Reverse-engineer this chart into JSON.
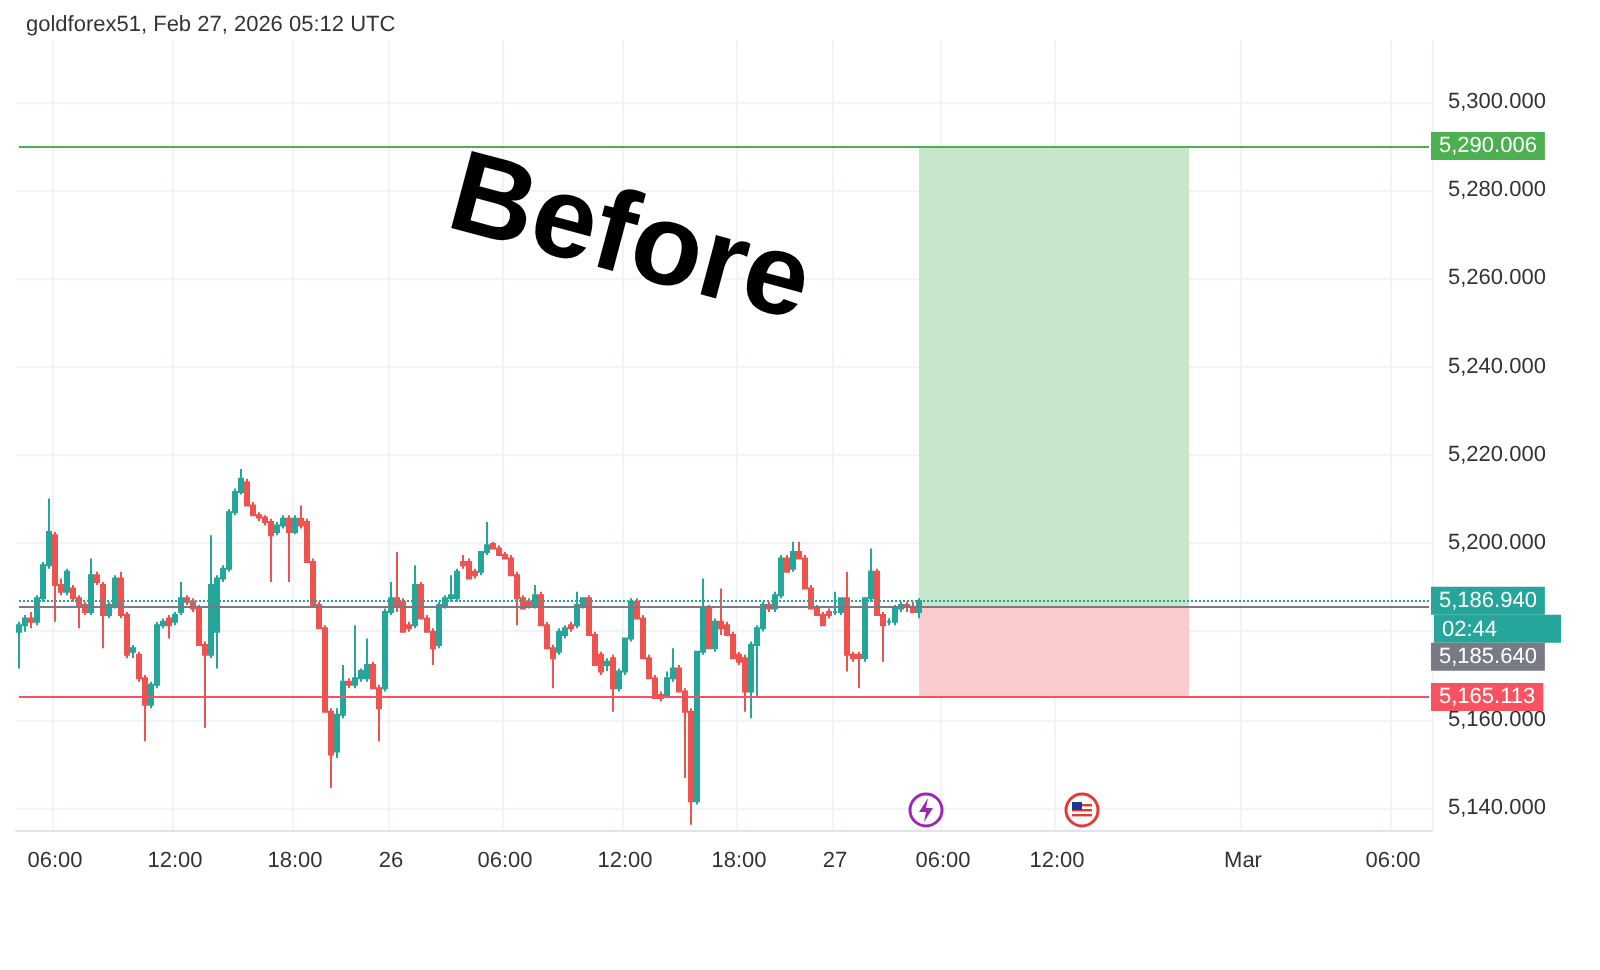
{
  "chart_data": {
    "type": "candlestick",
    "title": "goldforex51, Feb 27, 2026 05:12 UTC",
    "annotations": [
      "Before",
      "02:44"
    ],
    "categories": [
      null,
      null,
      null,
      null,
      null,
      null,
      "06:00",
      null,
      null,
      null,
      null,
      null,
      null,
      null,
      null,
      null,
      null,
      null,
      null,
      null,
      null,
      null,
      null,
      null,
      null,
      null,
      "12:00",
      null,
      null,
      null,
      null,
      null,
      null,
      null,
      null,
      null,
      null,
      null,
      null,
      null,
      null,
      null,
      null,
      null,
      null,
      null,
      "18:00",
      null,
      null,
      null,
      null,
      null,
      null,
      null,
      null,
      null,
      null,
      null,
      null,
      null,
      null,
      null,
      "26",
      null,
      null,
      null,
      null,
      null,
      null,
      null,
      null,
      null,
      null,
      null,
      null,
      null,
      null,
      null,
      null,
      null,
      null,
      "06:00",
      null,
      null,
      null,
      null,
      null,
      null,
      null,
      null,
      null,
      null,
      null,
      null,
      null,
      null,
      null,
      null,
      null,
      null,
      null,
      "12:00",
      null,
      null,
      null,
      null,
      null,
      null,
      null,
      null,
      null,
      null,
      null,
      null,
      null,
      null,
      null,
      null,
      null,
      null,
      "18:00",
      null,
      null,
      null,
      null,
      null,
      null,
      null,
      null,
      null,
      null,
      null,
      null,
      null,
      null,
      null,
      "27",
      null,
      null,
      null,
      null,
      null,
      null,
      null,
      null,
      null,
      null,
      null,
      null,
      null,
      null,
      null,
      null,
      null,
      "06:00",
      null,
      null,
      null,
      null,
      null,
      null,
      null,
      null,
      null,
      null,
      null,
      null,
      null,
      null,
      null,
      null,
      null,
      null,
      "12:00",
      null,
      null,
      null,
      null,
      null,
      null,
      null,
      null,
      null,
      null,
      null,
      null,
      null,
      null,
      null,
      null,
      null,
      null,
      null,
      null,
      null,
      null,
      null,
      null,
      null,
      null,
      null,
      null,
      null,
      null,
      "Mar",
      null,
      null,
      null,
      null,
      null,
      null,
      null,
      null,
      null,
      null,
      null,
      null,
      null,
      null,
      null,
      null,
      null,
      null,
      null,
      null,
      null,
      null,
      null,
      null,
      "06:00",
      null,
      null,
      null,
      null,
      null,
      null
    ],
    "ohlc": [
      [
        5179.9,
        5182.2,
        5171.6,
        5181.4
      ],
      [
        5181.4,
        5183.7,
        5179.9,
        5182.9
      ],
      [
        5182.9,
        5184.4,
        5180.7,
        5182.2
      ],
      [
        5182.2,
        5188.2,
        5181.4,
        5187.5
      ],
      [
        5187.5,
        5195.7,
        5186.7,
        5195.0
      ],
      [
        5195.0,
        5210.1,
        5194.2,
        5202.5
      ],
      [
        5201.8,
        5202.5,
        5182.2,
        5190.5
      ],
      [
        5190.5,
        5192.0,
        5188.2,
        5189.0
      ],
      [
        5189.0,
        5194.2,
        5188.2,
        5193.5
      ],
      [
        5189.7,
        5190.5,
        5186.7,
        5187.5
      ],
      [
        5187.5,
        5188.2,
        5180.7,
        5186.0
      ],
      [
        5186.0,
        5186.7,
        5183.7,
        5184.4
      ],
      [
        5184.4,
        5196.5,
        5183.7,
        5192.7
      ],
      [
        5192.7,
        5193.5,
        5190.5,
        5191.2
      ],
      [
        5190.5,
        5191.2,
        5176.2,
        5183.7
      ],
      [
        5183.7,
        5186.7,
        5183.0,
        5186.0
      ],
      [
        5186.0,
        5192.7,
        5185.2,
        5192.0
      ],
      [
        5192.0,
        5193.5,
        5183.0,
        5183.7
      ],
      [
        5183.7,
        5184.4,
        5173.9,
        5174.7
      ],
      [
        5175.4,
        5176.9,
        5174.0,
        5176.2
      ],
      [
        5174.7,
        5175.4,
        5168.6,
        5169.4
      ],
      [
        5169.4,
        5170.1,
        5155.1,
        5163.4
      ],
      [
        5163.4,
        5168.6,
        5162.6,
        5167.9
      ],
      [
        5167.9,
        5182.2,
        5167.1,
        5181.4
      ],
      [
        5181.4,
        5182.9,
        5180.7,
        5182.2
      ],
      [
        5182.9,
        5183.7,
        5178.4,
        5181.4
      ],
      [
        5182.2,
        5184.4,
        5181.4,
        5183.7
      ],
      [
        5184.4,
        5191.2,
        5183.7,
        5187.5
      ],
      [
        5187.5,
        5188.2,
        5186.0,
        5186.7
      ],
      [
        5186.7,
        5187.5,
        5184.4,
        5185.2
      ],
      [
        5185.2,
        5186.0,
        5176.9,
        5176.9
      ],
      [
        5176.9,
        5177.7,
        5158.1,
        5174.7
      ],
      [
        5174.7,
        5201.8,
        5174.0,
        5190.5
      ],
      [
        5179.9,
        5192.7,
        5171.6,
        5192.0
      ],
      [
        5192.0,
        5195.0,
        5191.2,
        5194.2
      ],
      [
        5194.2,
        5207.7,
        5193.5,
        5207.0
      ],
      [
        5207.0,
        5212.4,
        5206.3,
        5211.6
      ],
      [
        5211.6,
        5216.8,
        5211.0,
        5214.6
      ],
      [
        5213.8,
        5214.6,
        5208.5,
        5208.5
      ],
      [
        5208.5,
        5209.3,
        5206.3,
        5206.3
      ],
      [
        5206.3,
        5207.0,
        5205.0,
        5205.8
      ],
      [
        5205.8,
        5206.3,
        5204.0,
        5204.8
      ],
      [
        5204.8,
        5205.5,
        5191.2,
        5201.8
      ],
      [
        5202.5,
        5204.8,
        5201.8,
        5204.0
      ],
      [
        5204.0,
        5206.3,
        5203.3,
        5205.5
      ],
      [
        5205.5,
        5206.3,
        5191.2,
        5202.5
      ],
      [
        5202.5,
        5206.3,
        5202.0,
        5205.5
      ],
      [
        5205.5,
        5208.5,
        5203.3,
        5204.0
      ],
      [
        5204.8,
        5205.5,
        5195.7,
        5195.7
      ],
      [
        5195.7,
        5196.5,
        5186.0,
        5186.0
      ],
      [
        5186.0,
        5186.7,
        5180.7,
        5180.7
      ],
      [
        5180.7,
        5181.4,
        5161.8,
        5161.8
      ],
      [
        5161.8,
        5162.6,
        5144.5,
        5152.1
      ],
      [
        5152.8,
        5162.6,
        5151.3,
        5161.1
      ],
      [
        5161.1,
        5172.4,
        5160.3,
        5168.6
      ],
      [
        5168.6,
        5169.4,
        5167.1,
        5167.9
      ],
      [
        5167.9,
        5181.4,
        5167.1,
        5169.4
      ],
      [
        5169.4,
        5171.6,
        5168.6,
        5171.0
      ],
      [
        5169.4,
        5178.4,
        5168.6,
        5172.4
      ],
      [
        5172.4,
        5173.1,
        5167.1,
        5167.1
      ],
      [
        5167.1,
        5167.9,
        5155.1,
        5162.6
      ],
      [
        5167.1,
        5185.2,
        5166.4,
        5184.4
      ],
      [
        5184.4,
        5191.2,
        5183.7,
        5187.5
      ],
      [
        5187.5,
        5198.0,
        5184.4,
        5186.0
      ],
      [
        5186.7,
        5187.5,
        5179.9,
        5179.9
      ],
      [
        5181.4,
        5182.2,
        5179.9,
        5180.7
      ],
      [
        5181.4,
        5195.0,
        5180.7,
        5190.5
      ],
      [
        5190.5,
        5191.2,
        5182.9,
        5182.9
      ],
      [
        5182.9,
        5183.7,
        5179.9,
        5179.9
      ],
      [
        5179.9,
        5180.7,
        5172.4,
        5176.2
      ],
      [
        5176.9,
        5186.7,
        5176.2,
        5186.0
      ],
      [
        5186.0,
        5188.2,
        5185.2,
        5187.5
      ],
      [
        5187.5,
        5192.7,
        5186.7,
        5188.2
      ],
      [
        5187.5,
        5194.2,
        5186.7,
        5193.5
      ],
      [
        5195.7,
        5197.3,
        5194.2,
        5195.0
      ],
      [
        5195.7,
        5196.5,
        5192.0,
        5192.0
      ],
      [
        5193.5,
        5194.2,
        5192.0,
        5192.7
      ],
      [
        5193.5,
        5198.0,
        5192.7,
        5198.0
      ],
      [
        5198.0,
        5204.8,
        5197.3,
        5199.5
      ],
      [
        5199.8,
        5200.3,
        5198.8,
        5198.8
      ],
      [
        5198.8,
        5199.5,
        5197.3,
        5197.3
      ],
      [
        5197.3,
        5198.0,
        5196.5,
        5196.5
      ],
      [
        5196.5,
        5197.3,
        5192.7,
        5192.7
      ],
      [
        5192.7,
        5193.5,
        5181.4,
        5187.5
      ],
      [
        5187.5,
        5188.2,
        5185.2,
        5185.2
      ],
      [
        5186.7,
        5187.5,
        5185.2,
        5186.0
      ],
      [
        5186.0,
        5190.5,
        5185.2,
        5188.2
      ],
      [
        5188.2,
        5189.0,
        5181.4,
        5181.4
      ],
      [
        5181.4,
        5182.2,
        5176.2,
        5176.2
      ],
      [
        5176.2,
        5177.0,
        5167.1,
        5173.9
      ],
      [
        5175.4,
        5180.7,
        5174.7,
        5179.9
      ],
      [
        5179.2,
        5181.4,
        5178.4,
        5180.7
      ],
      [
        5181.4,
        5182.2,
        5179.9,
        5180.7
      ],
      [
        5181.4,
        5189.0,
        5180.7,
        5186.0
      ],
      [
        5186.0,
        5187.5,
        5185.2,
        5187.5
      ],
      [
        5187.5,
        5188.2,
        5179.2,
        5179.2
      ],
      [
        5179.2,
        5179.9,
        5172.4,
        5172.4
      ],
      [
        5174.7,
        5175.4,
        5170.1,
        5170.9
      ],
      [
        5172.4,
        5173.9,
        5171.0,
        5173.1
      ],
      [
        5173.9,
        5174.7,
        5161.8,
        5167.1
      ],
      [
        5167.1,
        5171.6,
        5166.4,
        5170.9
      ],
      [
        5170.9,
        5178.4,
        5170.1,
        5178.4
      ],
      [
        5178.4,
        5187.5,
        5177.7,
        5186.7
      ],
      [
        5186.7,
        5187.5,
        5182.9,
        5182.9
      ],
      [
        5182.9,
        5183.7,
        5173.9,
        5173.9
      ],
      [
        5173.9,
        5174.7,
        5169.4,
        5169.4
      ],
      [
        5169.4,
        5170.1,
        5164.9,
        5164.9
      ],
      [
        5165.6,
        5166.4,
        5164.1,
        5164.9
      ],
      [
        5165.6,
        5170.9,
        5164.9,
        5169.4
      ],
      [
        5169.4,
        5176.2,
        5168.6,
        5171.6
      ],
      [
        5171.6,
        5172.4,
        5166.4,
        5166.4
      ],
      [
        5166.4,
        5167.1,
        5146.8,
        5161.8
      ],
      [
        5161.8,
        5162.6,
        5136.2,
        5141.5
      ],
      [
        5141.5,
        5175.4,
        5140.8,
        5175.4
      ],
      [
        5175.4,
        5192.0,
        5174.7,
        5185.2
      ],
      [
        5185.2,
        5186.0,
        5176.2,
        5176.2
      ],
      [
        5176.2,
        5182.9,
        5175.4,
        5182.2
      ],
      [
        5182.2,
        5189.7,
        5179.2,
        5180.7
      ],
      [
        5181.4,
        5182.2,
        5179.2,
        5179.2
      ],
      [
        5179.2,
        5179.9,
        5173.9,
        5173.9
      ],
      [
        5174.7,
        5175.4,
        5172.4,
        5173.1
      ],
      [
        5173.9,
        5174.7,
        5161.8,
        5166.4
      ],
      [
        5166.4,
        5177.7,
        5160.3,
        5176.9
      ],
      [
        5176.9,
        5181.4,
        5165.0,
        5180.7
      ],
      [
        5180.7,
        5186.7,
        5180.0,
        5186.0
      ],
      [
        5186.0,
        5186.7,
        5184.4,
        5185.2
      ],
      [
        5185.2,
        5189.0,
        5184.4,
        5188.2
      ],
      [
        5188.2,
        5197.3,
        5187.5,
        5196.5
      ],
      [
        5196.5,
        5197.3,
        5193.5,
        5193.5
      ],
      [
        5194.2,
        5200.3,
        5193.5,
        5198.0
      ],
      [
        5198.0,
        5200.3,
        5196.5,
        5196.5
      ],
      [
        5196.5,
        5197.3,
        5189.7,
        5189.7
      ],
      [
        5189.7,
        5190.5,
        5185.2,
        5185.2
      ],
      [
        5185.2,
        5186.0,
        5183.7,
        5183.7
      ],
      [
        5183.7,
        5184.4,
        5181.4,
        5181.4
      ],
      [
        5184.4,
        5185.2,
        5182.9,
        5183.7
      ],
      [
        5184.4,
        5189.0,
        5183.7,
        5184.4
      ],
      [
        5184.4,
        5187.5,
        5183.7,
        5187.5
      ],
      [
        5187.5,
        5193.5,
        5170.9,
        5174.7
      ],
      [
        5174.7,
        5175.4,
        5173.1,
        5173.9
      ],
      [
        5174.7,
        5175.4,
        5167.1,
        5174.0
      ],
      [
        5174.0,
        5187.5,
        5173.1,
        5187.5
      ],
      [
        5187.5,
        5198.8,
        5186.7,
        5193.5
      ],
      [
        5193.5,
        5194.2,
        5183.7,
        5183.7
      ],
      [
        5183.7,
        5184.4,
        5173.1,
        5181.4
      ],
      [
        5182.2,
        5183.0,
        5181.4,
        5182.2
      ],
      [
        5182.2,
        5186.0,
        5181.4,
        5185.2
      ],
      [
        5185.2,
        5186.7,
        5184.4,
        5186.0
      ],
      [
        5186.0,
        5186.7,
        5184.4,
        5185.6
      ],
      [
        5185.6,
        5186.7,
        5184.4,
        5184.4
      ],
      [
        5184.4,
        5187.5,
        5183.0,
        5186.9
      ],
      null,
      null,
      null,
      null,
      null,
      null,
      null,
      null,
      null,
      null,
      null,
      null,
      null,
      null,
      null,
      null,
      null,
      null,
      null,
      null,
      null,
      null,
      null,
      null,
      null,
      null,
      null,
      null,
      null,
      null,
      null,
      null,
      null,
      null,
      null,
      null,
      null,
      null,
      null,
      null,
      null,
      null,
      null,
      null,
      null,
      null,
      null,
      null,
      null,
      null,
      null,
      null,
      null,
      null,
      null,
      null,
      null,
      null,
      null,
      null,
      null,
      null,
      null,
      null,
      null,
      null,
      null,
      null,
      null,
      null,
      null,
      null,
      null,
      null,
      null,
      null,
      null,
      null,
      null,
      null,
      null,
      null,
      null,
      null,
      null
    ],
    "ylim": [
      5135,
      5314
    ],
    "yticks": [
      {
        "value": 5140,
        "label": "5,140.000"
      },
      {
        "value": 5160,
        "label": "5,160.000"
      },
      {
        "value": 5180,
        "label": null
      },
      {
        "value": 5200,
        "label": "5,200.000"
      },
      {
        "value": 5220,
        "label": "5,220.000"
      },
      {
        "value": 5240,
        "label": "5,240.000"
      },
      {
        "value": 5260,
        "label": "5,260.000"
      },
      {
        "value": 5280,
        "label": "5,280.000"
      },
      {
        "value": 5300,
        "label": "5,300.000"
      }
    ],
    "bands": [
      {
        "axis": "y",
        "from": 5185.64,
        "to": 5290.006,
        "color": "#c8e6c9"
      },
      {
        "axis": "y",
        "from": 5165.113,
        "to": 5185.64,
        "color": "#fccbcd"
      }
    ],
    "ref_lines": [
      {
        "axis": "y",
        "value": 5290.006,
        "label": "5,290.006",
        "color": "#4caf50"
      },
      {
        "axis": "y",
        "value": 5186.94,
        "label": "5,186.940",
        "color": "#26a69a",
        "line_style": "dotted"
      },
      {
        "axis": "y",
        "value": 5185.64,
        "label": "5,185.640",
        "color": "#787b86"
      },
      {
        "axis": "y",
        "value": 5165.113,
        "label": "5,165.113",
        "color": "#f7525f"
      }
    ],
    "grid": true
  }
}
